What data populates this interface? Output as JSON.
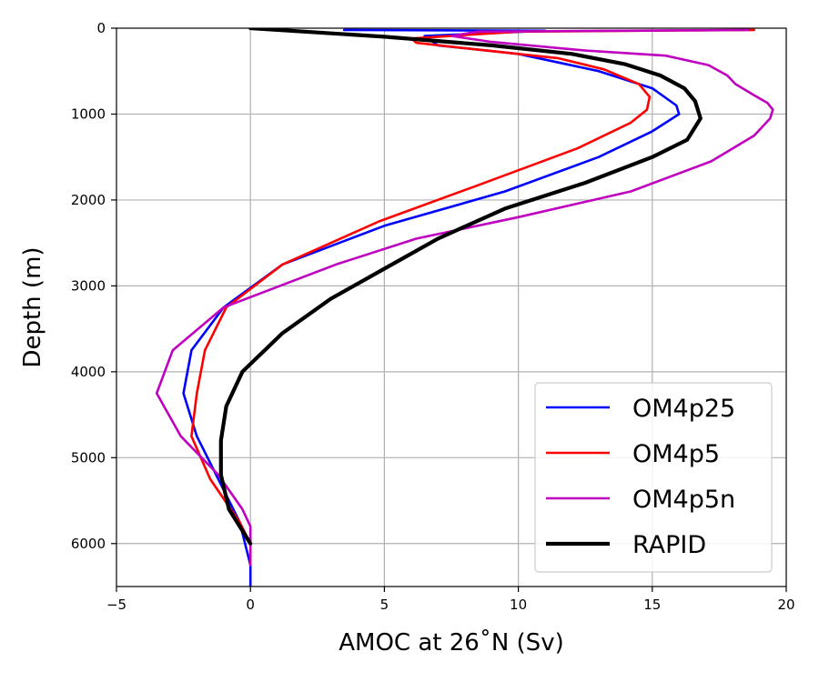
{
  "chart_data": {
    "type": "line",
    "xlabel": "AMOC at 26$^\\circ$N (Sv)",
    "xlabel_display": "AMOC at 26˚N (Sv)",
    "ylabel": "Depth (m)",
    "xlim": [
      -5,
      20
    ],
    "ylim": [
      6500,
      0
    ],
    "y_inverted": true,
    "xticks": [
      -5,
      0,
      5,
      10,
      15,
      20
    ],
    "xtick_labels": [
      "−5",
      "0",
      "5",
      "10",
      "15",
      "20"
    ],
    "yticks": [
      0,
      1000,
      2000,
      3000,
      4000,
      5000,
      6000
    ],
    "ytick_labels": [
      "0",
      "1000",
      "2000",
      "3000",
      "4000",
      "5000",
      "6000"
    ],
    "grid": true,
    "legend_position": "lower-right",
    "series": [
      {
        "name": "OM4p25",
        "color": "#0000ff",
        "x": [
          3.5,
          11,
          6.5,
          7,
          10,
          13,
          15,
          15.9,
          16,
          15,
          13,
          9.5,
          5,
          1.2,
          -1,
          -2.2,
          -2.5,
          -2,
          -1.2,
          -0.4,
          0,
          0
        ],
        "y": [
          20,
          30,
          90,
          200,
          300,
          500,
          700,
          900,
          1000,
          1200,
          1500,
          1900,
          2300,
          2750,
          3250,
          3750,
          4250,
          4750,
          5250,
          5750,
          6250,
          6500
        ]
      },
      {
        "name": "OM4p5",
        "color": "#ff0000",
        "x": [
          18.8,
          10,
          6,
          6.2,
          8.5,
          11.5,
          13.2,
          14.5,
          14.9,
          14.8,
          14.2,
          12.2,
          8.3,
          4.8,
          1.2,
          -0.9,
          -1.7,
          -2,
          -2.2,
          -1.5,
          -0.4,
          0
        ],
        "y": [
          20,
          40,
          120,
          170,
          250,
          350,
          480,
          650,
          800,
          950,
          1100,
          1400,
          1850,
          2250,
          2750,
          3250,
          3750,
          4250,
          4750,
          5250,
          5750,
          6000
        ]
      },
      {
        "name": "OM4p5n",
        "color": "#bf00bf",
        "x": [
          18.6,
          8.5,
          7.5,
          9,
          12.5,
          15.5,
          17.1,
          17.8,
          18.1,
          18.8,
          19.3,
          19.5,
          19.4,
          18.8,
          17.2,
          14.2,
          10,
          6.2,
          3.2,
          -1,
          -2.9,
          -3.5,
          -2.6,
          -1.2,
          -0.3,
          0,
          0
        ],
        "y": [
          20,
          40,
          90,
          160,
          260,
          320,
          430,
          550,
          650,
          780,
          870,
          950,
          1050,
          1250,
          1550,
          1900,
          2200,
          2450,
          2750,
          3250,
          3750,
          4250,
          4750,
          5200,
          5600,
          5800,
          6250
        ]
      },
      {
        "name": "RAPID",
        "color": "#000000",
        "x": [
          0,
          5,
          9,
          12,
          14,
          15.3,
          16.2,
          16.6,
          16.8,
          16.3,
          15,
          12.5,
          9.5,
          7,
          5,
          3,
          1.2,
          -0.3,
          -0.9,
          -1.1,
          -1.1,
          -0.8,
          -0.3,
          0
        ],
        "y": [
          0,
          100,
          200,
          300,
          420,
          550,
          700,
          850,
          1050,
          1300,
          1500,
          1800,
          2100,
          2450,
          2800,
          3150,
          3550,
          4000,
          4400,
          4800,
          5200,
          5600,
          5850,
          6000
        ]
      }
    ]
  }
}
